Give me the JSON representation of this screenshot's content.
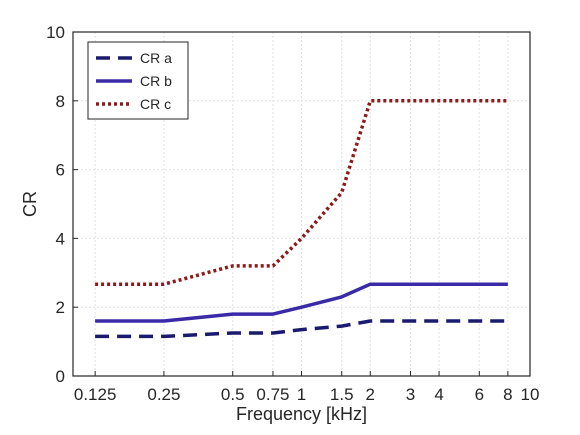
{
  "chart_data": {
    "type": "line",
    "xscale": "log",
    "xlabel": "Frequency [kHz]",
    "ylabel": "CR",
    "xlim": [
      0.1,
      10
    ],
    "ylim": [
      0,
      10
    ],
    "xticks": [
      {
        "value": 0.125,
        "label": "0.125"
      },
      {
        "value": 0.25,
        "label": "0.25"
      },
      {
        "value": 0.5,
        "label": "0.5"
      },
      {
        "value": 0.75,
        "label": "0.75"
      },
      {
        "value": 1,
        "label": "1"
      },
      {
        "value": 1.5,
        "label": "1.5"
      },
      {
        "value": 2,
        "label": "2"
      },
      {
        "value": 3,
        "label": "3"
      },
      {
        "value": 4,
        "label": "4"
      },
      {
        "value": 6,
        "label": "6"
      },
      {
        "value": 8,
        "label": "8"
      },
      {
        "value": 10,
        "label": "10"
      }
    ],
    "yticks": [
      {
        "value": 0,
        "label": "0"
      },
      {
        "value": 2,
        "label": "2"
      },
      {
        "value": 4,
        "label": "4"
      },
      {
        "value": 6,
        "label": "6"
      },
      {
        "value": 8,
        "label": "8"
      },
      {
        "value": 10,
        "label": "10"
      }
    ],
    "grid": true,
    "legend_position": "top-left",
    "x": [
      0.125,
      0.25,
      0.5,
      0.75,
      1,
      1.5,
      2,
      3,
      4,
      6,
      8
    ],
    "series": [
      {
        "name": "CR a",
        "values": [
          1.15,
          1.15,
          1.25,
          1.25,
          1.35,
          1.45,
          1.6,
          1.6,
          1.6,
          1.6,
          1.6
        ],
        "color": "#1a1a6e",
        "style": "dashed"
      },
      {
        "name": "CR b",
        "values": [
          1.6,
          1.6,
          1.8,
          1.8,
          2.0,
          2.3,
          2.67,
          2.67,
          2.67,
          2.67,
          2.67
        ],
        "color": "#3a2aa8",
        "style": "solid"
      },
      {
        "name": "CR c",
        "values": [
          2.67,
          2.67,
          3.2,
          3.2,
          4.0,
          5.33,
          8.0,
          8.0,
          8.0,
          8.0,
          8.0
        ],
        "color": "#8b1a1a",
        "style": "dotted"
      }
    ]
  }
}
